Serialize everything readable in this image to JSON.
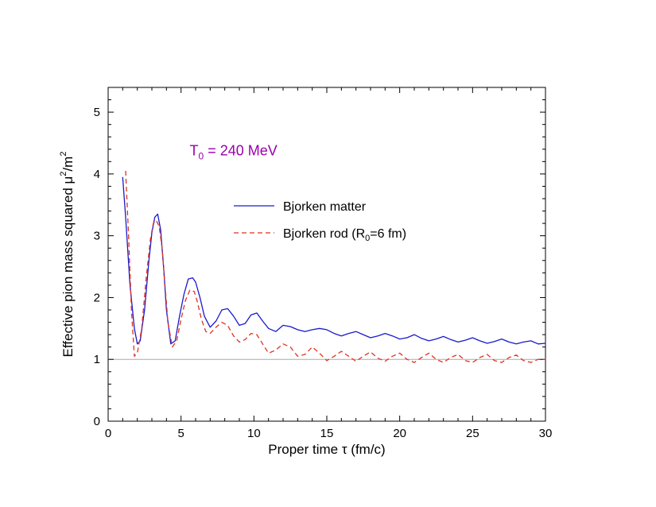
{
  "chart_data": {
    "type": "line",
    "title": "",
    "xlabel": "Proper time τ (fm/c)",
    "ylabel_prefix": "Effective pion mass squared μ",
    "ylabel_sup1": "2",
    "ylabel_mid": "/m",
    "ylabel_sup2": "2",
    "xlim": [
      0,
      30
    ],
    "ylim": [
      0,
      5.4
    ],
    "xticks": [
      0,
      5,
      10,
      15,
      20,
      25,
      30
    ],
    "yticks": [
      0,
      1,
      2,
      3,
      4,
      5
    ],
    "reference_line": {
      "y": 1,
      "color": "#aaaaaa"
    },
    "annotation": {
      "prefix": "T",
      "sub": "0",
      "suffix": " = 240 MeV",
      "color": "#9900aa",
      "x": 8.6,
      "y": 4.3
    },
    "legend_placement": "upper-middle",
    "series": [
      {
        "name": "Bjorken matter",
        "color": "#1a1acc",
        "style": "solid",
        "x": [
          1.0,
          1.2,
          1.5,
          1.8,
          2.0,
          2.2,
          2.5,
          2.8,
          3.0,
          3.2,
          3.4,
          3.6,
          3.8,
          4.0,
          4.3,
          4.6,
          4.9,
          5.2,
          5.5,
          5.8,
          6.0,
          6.3,
          6.6,
          7.0,
          7.4,
          7.8,
          8.2,
          8.6,
          9.0,
          9.4,
          9.8,
          10.2,
          10.6,
          11.0,
          11.5,
          12.0,
          12.5,
          13.0,
          13.5,
          14.0,
          14.5,
          15.0,
          15.5,
          16.0,
          16.5,
          17.0,
          17.5,
          18.0,
          18.5,
          19.0,
          19.5,
          20.0,
          20.5,
          21.0,
          21.5,
          22.0,
          22.5,
          23.0,
          23.5,
          24.0,
          24.5,
          25.0,
          25.5,
          26.0,
          26.5,
          27.0,
          27.5,
          28.0,
          28.5,
          29.0,
          29.5,
          30.0
        ],
        "y": [
          3.95,
          3.3,
          2.2,
          1.5,
          1.25,
          1.3,
          1.8,
          2.6,
          3.05,
          3.3,
          3.35,
          3.1,
          2.5,
          1.8,
          1.25,
          1.3,
          1.7,
          2.05,
          2.3,
          2.32,
          2.25,
          2.0,
          1.7,
          1.52,
          1.62,
          1.8,
          1.82,
          1.7,
          1.55,
          1.58,
          1.72,
          1.75,
          1.62,
          1.5,
          1.45,
          1.55,
          1.53,
          1.48,
          1.45,
          1.48,
          1.5,
          1.48,
          1.42,
          1.38,
          1.42,
          1.45,
          1.4,
          1.35,
          1.38,
          1.42,
          1.38,
          1.33,
          1.35,
          1.4,
          1.34,
          1.3,
          1.33,
          1.37,
          1.32,
          1.28,
          1.31,
          1.35,
          1.3,
          1.26,
          1.29,
          1.33,
          1.28,
          1.25,
          1.28,
          1.3,
          1.25,
          1.26
        ]
      },
      {
        "name": "Bjorken rod (R",
        "name_sub": "0",
        "name_suffix": "=6 fm)",
        "color": "#dd3322",
        "style": "dashed",
        "x": [
          1.2,
          1.4,
          1.6,
          1.8,
          2.0,
          2.3,
          2.6,
          2.9,
          3.1,
          3.3,
          3.5,
          3.7,
          3.9,
          4.1,
          4.4,
          4.7,
          5.0,
          5.3,
          5.6,
          5.9,
          6.1,
          6.4,
          6.7,
          7.0,
          7.4,
          7.8,
          8.2,
          8.6,
          9.0,
          9.4,
          9.8,
          10.2,
          10.6,
          11.0,
          11.5,
          12.0,
          12.5,
          13.0,
          13.5,
          14.0,
          14.5,
          15.0,
          15.5,
          16.0,
          16.5,
          17.0,
          17.5,
          18.0,
          18.5,
          19.0,
          19.5,
          20.0,
          20.5,
          21.0,
          21.5,
          22.0,
          22.5,
          23.0,
          23.5,
          24.0,
          24.5,
          25.0,
          25.5,
          26.0,
          26.5,
          27.0,
          27.5,
          28.0,
          28.5,
          29.0,
          29.5,
          30.0
        ],
        "y": [
          4.05,
          3.0,
          1.8,
          1.05,
          1.1,
          1.5,
          2.3,
          2.95,
          3.2,
          3.25,
          3.15,
          2.8,
          2.2,
          1.6,
          1.2,
          1.3,
          1.65,
          1.95,
          2.12,
          2.1,
          1.95,
          1.65,
          1.45,
          1.42,
          1.52,
          1.6,
          1.55,
          1.38,
          1.28,
          1.32,
          1.42,
          1.4,
          1.25,
          1.1,
          1.15,
          1.25,
          1.2,
          1.05,
          1.08,
          1.2,
          1.1,
          0.98,
          1.05,
          1.13,
          1.05,
          0.97,
          1.05,
          1.12,
          1.02,
          0.97,
          1.05,
          1.1,
          1.0,
          0.95,
          1.03,
          1.1,
          1.0,
          0.95,
          1.03,
          1.08,
          0.98,
          0.95,
          1.03,
          1.08,
          0.98,
          0.95,
          1.03,
          1.07,
          0.98,
          0.95,
          1.0,
          1.0
        ]
      }
    ]
  }
}
